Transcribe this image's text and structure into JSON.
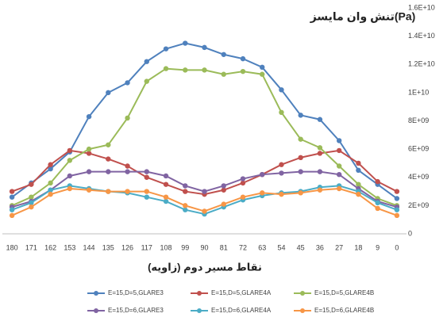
{
  "chart_data": {
    "type": "line",
    "title": "تنش وان مایسز(Pa)",
    "x_label": "نقاط مسیر دوم (زاویه)",
    "categories": [
      "180",
      "171",
      "162",
      "153",
      "144",
      "135",
      "126",
      "117",
      "108",
      "99",
      "90",
      "81",
      "72",
      "63",
      "54",
      "45",
      "36",
      "27",
      "18",
      "9",
      "0"
    ],
    "ylim": [
      0,
      16000000000
    ],
    "yticks": [
      0,
      {
        "value": 2000000000,
        "label": "2E+09"
      },
      {
        "value": 4000000000,
        "label": "4E+09"
      },
      {
        "value": 6000000000,
        "label": "6E+09"
      },
      {
        "value": 8000000000,
        "label": "8E+09"
      },
      {
        "value": 10000000000,
        "label": "1E+10"
      },
      {
        "value": 12000000000,
        "label": "1.2E+10"
      },
      {
        "value": 14000000000,
        "label": "1.4E+10"
      },
      {
        "value": 16000000000,
        "label": "1.6E+10"
      }
    ],
    "grid": false,
    "legend": "bottom",
    "series": [
      {
        "name": "E=15,D=5,GLARE3",
        "color": "#4f81bd",
        "values": [
          2600000000.0,
          3600000000.0,
          4600000000.0,
          5800000000.0,
          8300000000.0,
          10000000000.0,
          10700000000.0,
          12200000000.0,
          13100000000.0,
          13500000000.0,
          13200000000.0,
          12700000000.0,
          12400000000.0,
          11800000000.0,
          10200000000.0,
          8400000000.0,
          8100000000.0,
          6600000000.0,
          4500000000.0,
          3500000000.0,
          2500000000.0
        ]
      },
      {
        "name": "E=15,D=5,GLARE4A",
        "color": "#c0504d",
        "values": [
          3000000000.0,
          3500000000.0,
          4900000000.0,
          5900000000.0,
          5700000000.0,
          5300000000.0,
          4800000000.0,
          4000000000.0,
          3500000000.0,
          3000000000.0,
          2800000000.0,
          3100000000.0,
          3600000000.0,
          4200000000.0,
          4900000000.0,
          5400000000.0,
          5700000000.0,
          5900000000.0,
          5000000000.0,
          3700000000.0,
          3000000000.0
        ]
      },
      {
        "name": "E=15,D=5,GLARE4B",
        "color": "#9bbb59",
        "values": [
          2000000000.0,
          2600000000.0,
          3600000000.0,
          5200000000.0,
          6000000000.0,
          6300000000.0,
          8200000000.0,
          10800000000.0,
          11700000000.0,
          11600000000.0,
          11600000000.0,
          11300000000.0,
          11500000000.0,
          11300000000.0,
          8600000000.0,
          6700000000.0,
          6100000000.0,
          4800000000.0,
          3500000000.0,
          2500000000.0,
          2000000000.0
        ]
      },
      {
        "name": "E=15,D=6,GLARE3",
        "color": "#8064a2",
        "values": [
          1900000000.0,
          2300000000.0,
          3100000000.0,
          4100000000.0,
          4400000000.0,
          4400000000.0,
          4400000000.0,
          4400000000.0,
          4100000000.0,
          3400000000.0,
          3000000000.0,
          3400000000.0,
          3900000000.0,
          4200000000.0,
          4300000000.0,
          4400000000.0,
          4400000000.0,
          4200000000.0,
          3200000000.0,
          2300000000.0,
          1900000000.0
        ]
      },
      {
        "name": "E=15,D=6,GLARE4A",
        "color": "#4bacc6",
        "values": [
          1700000000.0,
          2200000000.0,
          3100000000.0,
          3400000000.0,
          3200000000.0,
          3000000000.0,
          2900000000.0,
          2600000000.0,
          2300000000.0,
          1700000000.0,
          1400000000.0,
          1900000000.0,
          2400000000.0,
          2700000000.0,
          2900000000.0,
          3000000000.0,
          3300000000.0,
          3400000000.0,
          3000000000.0,
          2200000000.0,
          1700000000.0
        ]
      },
      {
        "name": "E=15,D=6,GLARE4B",
        "color": "#f79646",
        "values": [
          1300000000.0,
          1900000000.0,
          2800000000.0,
          3200000000.0,
          3100000000.0,
          3000000000.0,
          3000000000.0,
          3000000000.0,
          2600000000.0,
          2000000000.0,
          1600000000.0,
          2100000000.0,
          2600000000.0,
          2900000000.0,
          2800000000.0,
          2900000000.0,
          3100000000.0,
          3200000000.0,
          2800000000.0,
          1800000000.0,
          1300000000.0
        ]
      }
    ]
  }
}
